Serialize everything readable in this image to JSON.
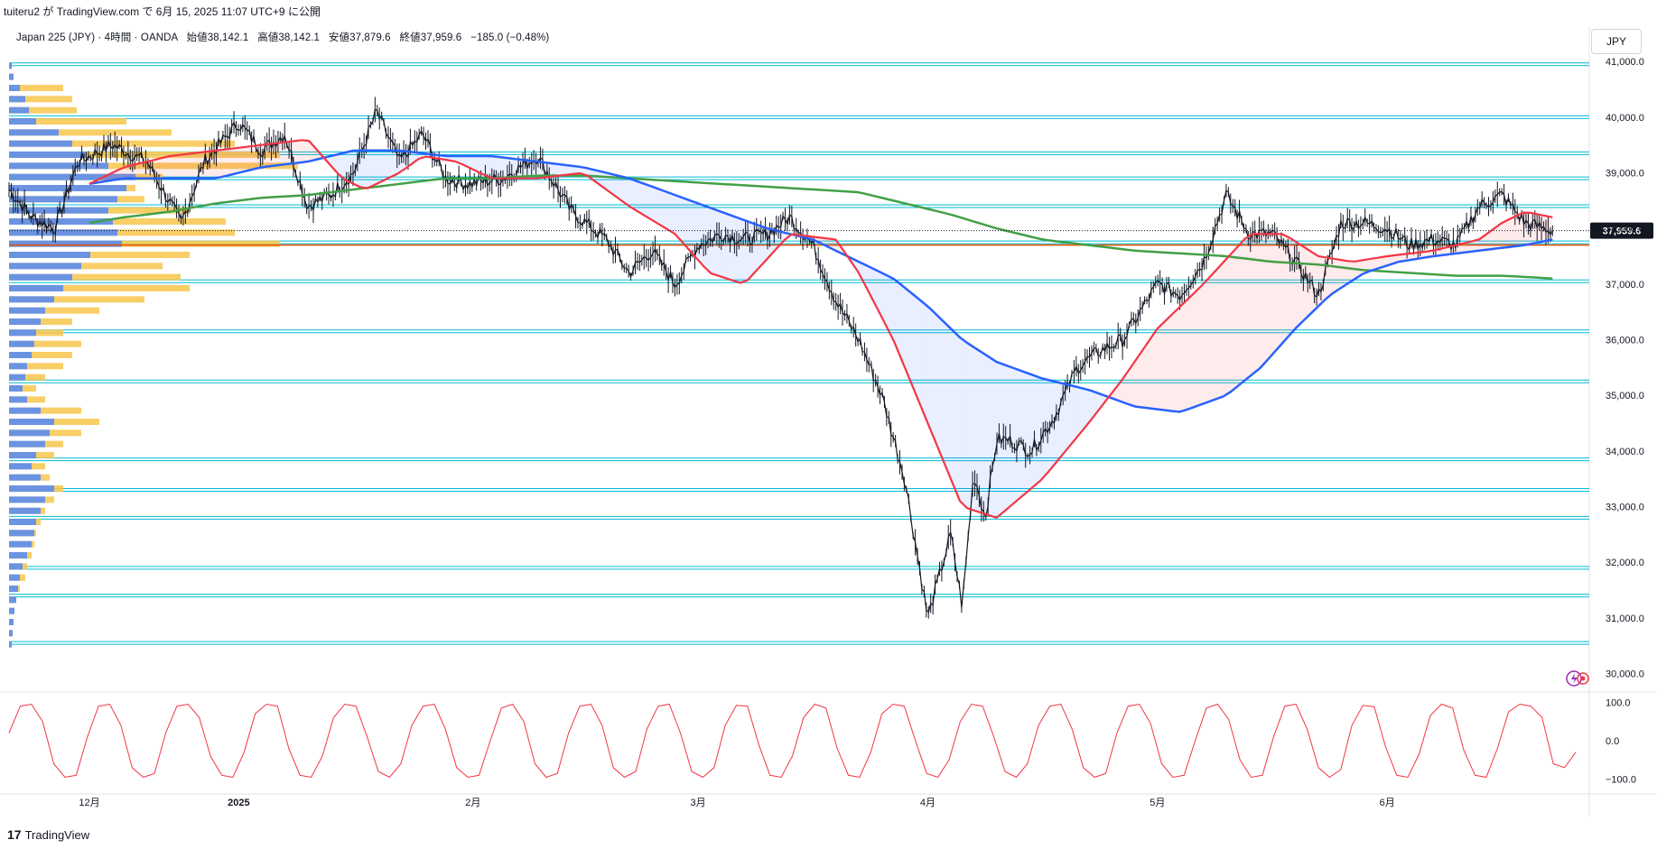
{
  "header": {
    "published": "tuiteru2 が TradingView.com で 6月 15, 2025 11:07 UTC+9 に公開"
  },
  "legend": {
    "symbol": "Japan 225 (JPY) · 4時間 · OANDA",
    "open": "始値38,142.1",
    "high": "高値38,142.1",
    "low": "安値37,879.6",
    "close": "終値37,959.6",
    "change": "−185.0 (−0.48%)"
  },
  "currency_label": "JPY",
  "footer": {
    "brand": "TradingView",
    "logo_glyph": "17"
  },
  "icons": [
    "lightning-icon",
    "target-icon"
  ],
  "colors": {
    "price": "#131722",
    "ma_fast": "#f23645",
    "ma_mid": "#2962ff",
    "ma_slow": "#43a047",
    "level_line": "#00bcd4",
    "poc_line": "#e65100",
    "vp_up": "#5b8def",
    "vp_down": "#f7c64b",
    "oscillator": "#f23645",
    "last_price_bg": "#131722"
  },
  "chart_data": [
    {
      "type": "line",
      "title": "",
      "xlabel": "",
      "ylabel": "",
      "ylim": [
        29700,
        41100
      ],
      "last_price_label": "37,959.6",
      "y_ticks": [
        30000,
        31000,
        32000,
        33000,
        34000,
        35000,
        36000,
        37000,
        38000,
        39000,
        40000,
        41000
      ],
      "y_tick_labels": [
        "30,000.0",
        "31,000.0",
        "32,000.0",
        "33,000.0",
        "34,000.0",
        "35,000.0",
        "36,000.0",
        "37,000.0",
        "38,000.0",
        "39,000.0",
        "40,000.0",
        "41,000.0"
      ],
      "x_range": [
        0,
        6.88
      ],
      "x_ticks": [
        0.35,
        1.0,
        2.02,
        3.0,
        4.0,
        5.0,
        6.0
      ],
      "x_tick_labels": [
        "12月",
        "2025",
        "2月",
        "3月",
        "4月",
        "5月",
        "6月"
      ],
      "horizontal_levels": [
        40950,
        40000,
        39350,
        38900,
        38400,
        37750,
        37050,
        36150,
        35250,
        33850,
        33300,
        32800,
        31900,
        31400,
        30550
      ],
      "poc_level": 37700,
      "series": [
        {
          "x": [
            0.0,
            0.1,
            0.2,
            0.3,
            0.45,
            0.6,
            0.75,
            0.85,
            1.0,
            1.1,
            1.2,
            1.3,
            1.4,
            1.5,
            1.6,
            1.7,
            1.8,
            1.9,
            2.0,
            2.15,
            2.3,
            2.45,
            2.6,
            2.7,
            2.8,
            2.9,
            3.0,
            3.1,
            3.2,
            3.3,
            3.4,
            3.5,
            3.6,
            3.7,
            3.8,
            3.9,
            4.0,
            4.1,
            4.15,
            4.2,
            4.25,
            4.3,
            4.35,
            4.45,
            4.55,
            4.65,
            4.75,
            4.85,
            5.0,
            5.1,
            5.2,
            5.3,
            5.4,
            5.5,
            5.6,
            5.7,
            5.8,
            5.9,
            6.0,
            6.1,
            6.2,
            6.3,
            6.4,
            6.5,
            6.6,
            6.72
          ],
          "values": [
            38700,
            38200,
            38000,
            39200,
            39500,
            39200,
            38100,
            39200,
            39900,
            39400,
            39700,
            38400,
            38600,
            39000,
            40100,
            39200,
            39700,
            38900,
            38800,
            38900,
            39300,
            38300,
            37800,
            37200,
            37600,
            37000,
            37700,
            37900,
            37800,
            37900,
            38200,
            37700,
            36700,
            36000,
            35000,
            33500,
            31000,
            32500,
            31200,
            33600,
            32800,
            34200,
            34200,
            34000,
            34600,
            35500,
            35800,
            36000,
            37000,
            36800,
            37400,
            38600,
            37900,
            37900,
            37400,
            36800,
            38100,
            38100,
            38000,
            37700,
            37800,
            37700,
            38400,
            38600,
            38100,
            37959.6
          ]
        },
        {
          "x": [
            0.35,
            0.5,
            0.7,
            0.9,
            1.1,
            1.3,
            1.45,
            1.55,
            1.7,
            1.8,
            1.95,
            2.1,
            2.3,
            2.5,
            2.7,
            2.9,
            3.05,
            3.2,
            3.4,
            3.6,
            3.7,
            3.85,
            4.0,
            4.15,
            4.3,
            4.5,
            4.7,
            4.85,
            5.0,
            5.2,
            5.4,
            5.55,
            5.7,
            5.85,
            6.0,
            6.2,
            6.4,
            6.5,
            6.6,
            6.72
          ],
          "values": [
            38800,
            39100,
            39300,
            39400,
            39500,
            39600,
            38900,
            38700,
            39000,
            39300,
            39200,
            38900,
            38900,
            39000,
            38400,
            37900,
            37200,
            37000,
            37900,
            37800,
            37200,
            36000,
            34500,
            33000,
            32800,
            33500,
            34500,
            35300,
            36200,
            37000,
            37900,
            37900,
            37500,
            37400,
            37500,
            37600,
            37800,
            38100,
            38300,
            38200
          ]
        },
        {
          "x": [
            0.35,
            0.5,
            0.7,
            0.9,
            1.1,
            1.3,
            1.5,
            1.7,
            1.9,
            2.1,
            2.3,
            2.5,
            2.7,
            2.9,
            3.1,
            3.3,
            3.5,
            3.7,
            3.85,
            4.0,
            4.15,
            4.3,
            4.5,
            4.7,
            4.9,
            5.1,
            5.3,
            5.45,
            5.6,
            5.75,
            5.9,
            6.05,
            6.2,
            6.4,
            6.6,
            6.72
          ],
          "values": [
            38800,
            38900,
            38900,
            38900,
            39100,
            39200,
            39400,
            39400,
            39300,
            39300,
            39200,
            39100,
            38900,
            38600,
            38300,
            38000,
            37800,
            37400,
            37100,
            36600,
            36000,
            35600,
            35300,
            35100,
            34800,
            34700,
            35000,
            35500,
            36200,
            36800,
            37200,
            37400,
            37500,
            37600,
            37700,
            37800
          ]
        },
        {
          "x": [
            0.35,
            0.5,
            0.7,
            0.9,
            1.1,
            1.3,
            1.5,
            1.7,
            1.9,
            2.1,
            2.3,
            2.5,
            2.7,
            2.9,
            3.1,
            3.3,
            3.5,
            3.7,
            3.9,
            4.1,
            4.3,
            4.5,
            4.7,
            4.9,
            5.1,
            5.3,
            5.5,
            5.7,
            5.9,
            6.1,
            6.3,
            6.5,
            6.72
          ],
          "values": [
            38100,
            38200,
            38300,
            38450,
            38550,
            38600,
            38700,
            38800,
            38900,
            38900,
            38950,
            38950,
            38900,
            38850,
            38800,
            38750,
            38700,
            38650,
            38450,
            38250,
            38000,
            37800,
            37700,
            37600,
            37550,
            37500,
            37400,
            37350,
            37250,
            37200,
            37150,
            37150,
            37100
          ]
        }
      ]
    },
    {
      "type": "bar",
      "title": "",
      "xlabel": "",
      "ylabel": "",
      "ylim": [
        29700,
        41100
      ],
      "y_prices": [
        40900,
        40700,
        40500,
        40300,
        40100,
        39900,
        39700,
        39500,
        39300,
        39100,
        38900,
        38700,
        38500,
        38300,
        38100,
        37900,
        37700,
        37500,
        37300,
        37100,
        36900,
        36700,
        36500,
        36300,
        36100,
        35900,
        35700,
        35500,
        35300,
        35100,
        34900,
        34700,
        34500,
        34300,
        34100,
        33900,
        33700,
        33500,
        33300,
        33100,
        32900,
        32700,
        32500,
        32300,
        32100,
        31900,
        31700,
        31500,
        31300,
        31100,
        30900,
        30700,
        30500
      ],
      "series": [
        {
          "values": [
            3,
            5,
            12,
            18,
            22,
            30,
            55,
            70,
            85,
            110,
            140,
            130,
            120,
            110,
            115,
            120,
            125,
            90,
            80,
            70,
            60,
            50,
            40,
            35,
            30,
            28,
            25,
            20,
            18,
            15,
            20,
            35,
            50,
            45,
            40,
            30,
            25,
            35,
            50,
            40,
            35,
            30,
            28,
            25,
            20,
            15,
            12,
            10,
            8,
            6,
            5,
            4,
            3
          ]
        },
        {
          "values": [
            2,
            4,
            60,
            70,
            75,
            130,
            180,
            250,
            300,
            320,
            170,
            140,
            150,
            200,
            240,
            250,
            300,
            200,
            170,
            190,
            200,
            150,
            100,
            70,
            60,
            80,
            70,
            60,
            40,
            30,
            40,
            80,
            100,
            80,
            60,
            50,
            40,
            45,
            60,
            50,
            40,
            35,
            30,
            28,
            25,
            20,
            18,
            12,
            8,
            6,
            5,
            4,
            3
          ]
        }
      ]
    },
    {
      "type": "line",
      "title": "",
      "xlabel": "",
      "ylabel": "",
      "ylim": [
        -115,
        115
      ],
      "y_ticks": [
        100,
        0,
        -100
      ],
      "y_tick_labels": [
        "100.0",
        "0.0",
        "−100.0"
      ],
      "series": [
        {
          "values": [
            20,
            90,
            95,
            50,
            -60,
            -95,
            -90,
            10,
            90,
            95,
            40,
            -70,
            -95,
            -85,
            20,
            90,
            95,
            60,
            -40,
            -90,
            -95,
            -30,
            70,
            95,
            90,
            -20,
            -90,
            -95,
            -40,
            60,
            95,
            90,
            10,
            -80,
            -95,
            -60,
            40,
            90,
            95,
            30,
            -70,
            -95,
            -90,
            0,
            85,
            95,
            50,
            -60,
            -95,
            -85,
            20,
            90,
            95,
            40,
            -70,
            -95,
            -80,
            30,
            90,
            95,
            20,
            -80,
            -95,
            -70,
            40,
            92,
            90,
            -10,
            -90,
            -95,
            -40,
            60,
            95,
            85,
            -20,
            -90,
            -95,
            -30,
            70,
            95,
            90,
            0,
            -85,
            -95,
            -50,
            50,
            95,
            90,
            10,
            -80,
            -95,
            -60,
            40,
            90,
            95,
            30,
            -70,
            -95,
            -85,
            20,
            90,
            95,
            45,
            -60,
            -95,
            -90,
            0,
            85,
            95,
            55,
            -50,
            -95,
            -90,
            10,
            90,
            95,
            30,
            -70,
            -95,
            -75,
            40,
            92,
            88,
            -15,
            -90,
            -95,
            -35,
            65,
            95,
            85,
            -25,
            -90,
            -95,
            -20,
            75,
            95,
            90,
            60,
            -60,
            -70,
            -30
          ]
        }
      ]
    }
  ]
}
